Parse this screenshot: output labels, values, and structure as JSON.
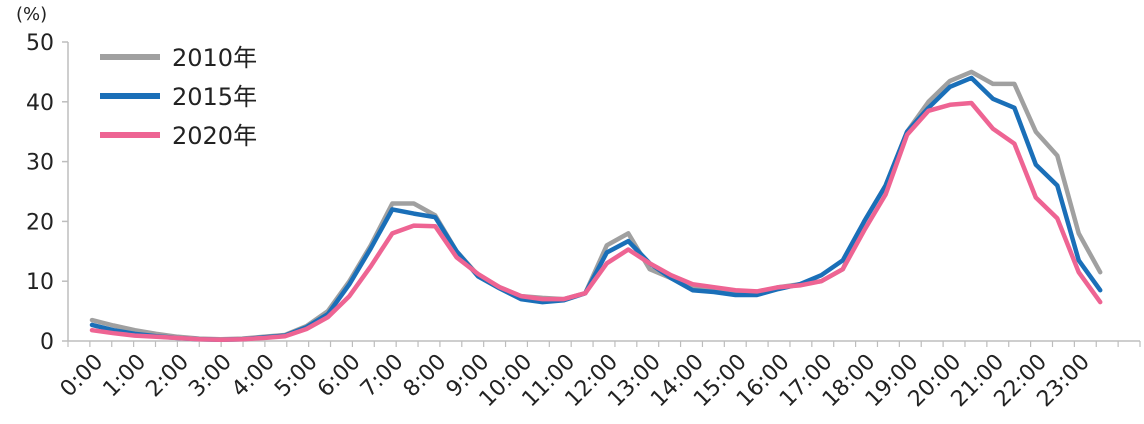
{
  "chart_data": {
    "type": "line",
    "title": "",
    "xlabel": "",
    "ylabel": "(%)",
    "ylim": [
      0,
      50
    ],
    "yticks": [
      0,
      10,
      20,
      30,
      40,
      50
    ],
    "grid": false,
    "legend_position": "top-left",
    "x_tick_labels": [
      "0:00",
      "1:00",
      "2:00",
      "3:00",
      "4:00",
      "5:00",
      "6:00",
      "7:00",
      "8:00",
      "9:00",
      "10:00",
      "11:00",
      "12:00",
      "13:00",
      "14:00",
      "15:00",
      "16:00",
      "17:00",
      "18:00",
      "19:00",
      "20:00",
      "21:00",
      "22:00",
      "23:00"
    ],
    "x_hours": [
      0,
      0.5,
      1,
      1.5,
      2,
      2.5,
      3,
      3.5,
      4,
      4.5,
      5,
      5.5,
      6,
      6.5,
      7,
      7.5,
      8,
      8.5,
      9,
      9.5,
      10,
      10.5,
      11,
      11.5,
      12,
      12.5,
      13,
      13.5,
      14,
      14.5,
      15,
      15.5,
      16,
      16.5,
      17,
      17.5,
      18,
      18.5,
      19,
      19.5,
      20,
      20.5,
      21,
      21.5,
      22,
      22.5,
      23,
      23.5
    ],
    "series": [
      {
        "name": "2010年",
        "color": "#a0a0a0",
        "values": [
          3.5,
          2.6,
          1.8,
          1.2,
          0.7,
          0.4,
          0.3,
          0.4,
          0.7,
          1.0,
          2.5,
          5.0,
          10.0,
          16.0,
          23.0,
          23.0,
          21.0,
          15.0,
          11.0,
          9.0,
          7.5,
          7.2,
          7.0,
          8.0,
          16.0,
          18.0,
          12.0,
          10.5,
          9.0,
          8.5,
          8.0,
          8.0,
          9.0,
          9.5,
          10.0,
          12.0,
          20.0,
          26.0,
          35.0,
          40.0,
          43.5,
          45.0,
          43.0,
          43.0,
          35.0,
          31.0,
          18.0,
          11.5
        ]
      },
      {
        "name": "2015年",
        "color": "#1a6fb8",
        "values": [
          2.7,
          1.8,
          1.2,
          0.8,
          0.5,
          0.3,
          0.2,
          0.3,
          0.6,
          0.9,
          2.3,
          4.5,
          9.5,
          15.5,
          22.0,
          21.3,
          20.7,
          15.0,
          10.8,
          8.8,
          7.0,
          6.5,
          6.8,
          8.0,
          14.8,
          16.7,
          13.0,
          10.5,
          8.5,
          8.2,
          7.7,
          7.7,
          8.7,
          9.5,
          11.0,
          13.5,
          20.0,
          26.0,
          35.0,
          39.0,
          42.5,
          44.0,
          40.5,
          39.0,
          29.5,
          26.0,
          13.5,
          8.5
        ]
      },
      {
        "name": "2020年",
        "color": "#ee6493",
        "values": [
          1.8,
          1.3,
          0.9,
          0.7,
          0.5,
          0.3,
          0.2,
          0.3,
          0.5,
          0.8,
          2.0,
          4.0,
          7.5,
          12.5,
          18.0,
          19.3,
          19.2,
          14.0,
          11.2,
          9.0,
          7.5,
          7.0,
          7.0,
          8.0,
          13.0,
          15.3,
          13.0,
          11.0,
          9.5,
          9.0,
          8.5,
          8.3,
          9.0,
          9.3,
          10.0,
          12.0,
          18.5,
          24.5,
          34.5,
          38.5,
          39.5,
          39.8,
          35.5,
          33.0,
          24.0,
          20.5,
          11.5,
          6.5
        ]
      }
    ]
  }
}
